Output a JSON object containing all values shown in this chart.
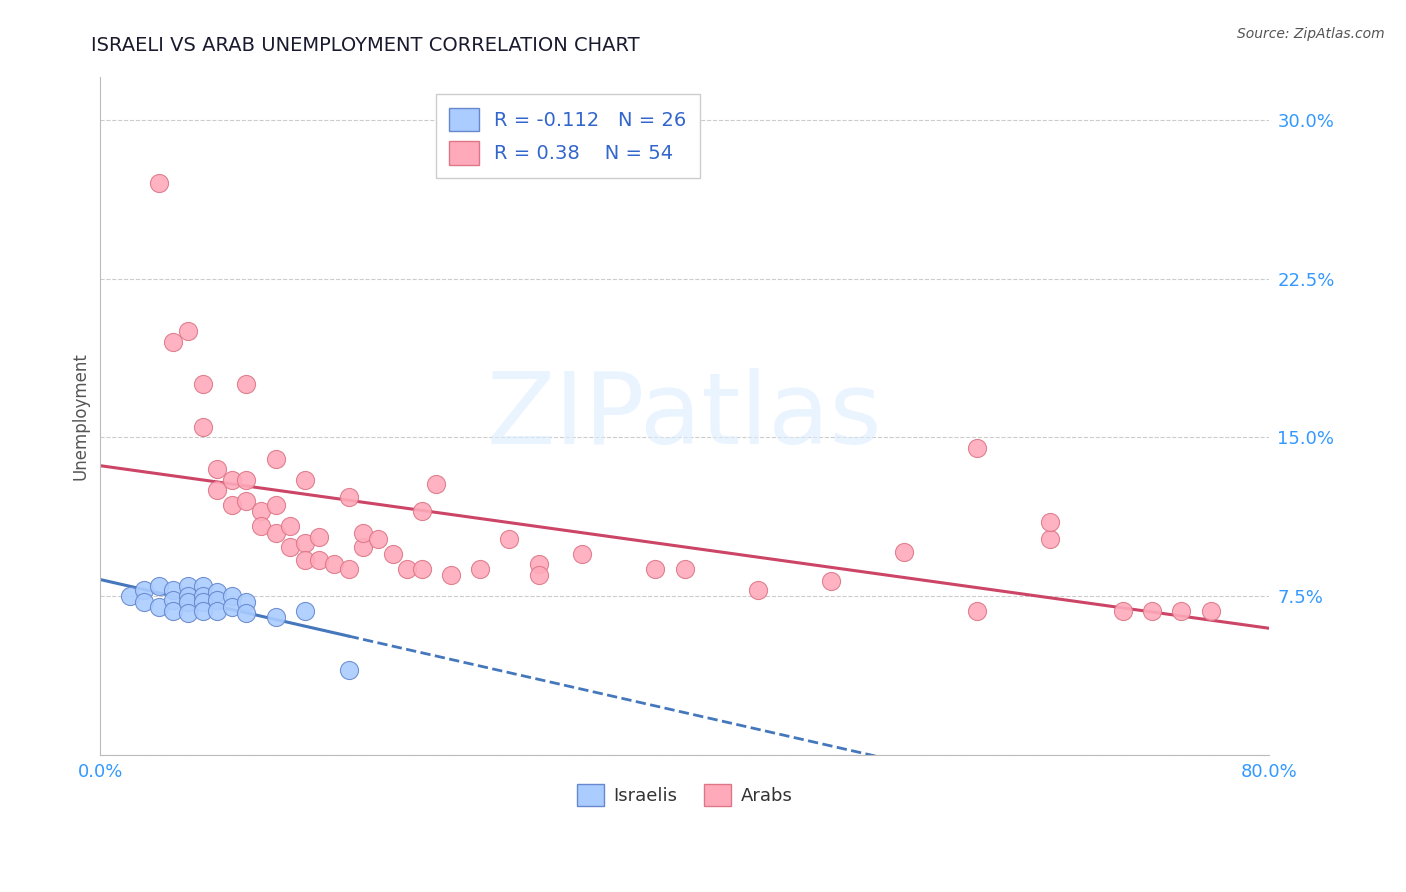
{
  "title": "ISRAELI VS ARAB UNEMPLOYMENT CORRELATION CHART",
  "source": "Source: ZipAtlas.com",
  "ylabel": "Unemployment",
  "xlim": [
    0.0,
    0.8
  ],
  "ylim": [
    0.0,
    0.32
  ],
  "yticks": [
    0.0,
    0.075,
    0.15,
    0.225,
    0.3
  ],
  "ytick_labels": [
    "",
    "7.5%",
    "15.0%",
    "22.5%",
    "30.0%"
  ],
  "xticks": [
    0.0,
    0.1,
    0.2,
    0.3,
    0.4,
    0.5,
    0.6,
    0.7,
    0.8
  ],
  "xtick_labels": [
    "0.0%",
    "",
    "",
    "",
    "",
    "",
    "",
    "",
    "80.0%"
  ],
  "grid_color": "#cccccc",
  "background_color": "#ffffff",
  "title_color": "#1a1a2e",
  "axis_label_color": "#555555",
  "tick_color": "#3399ff",
  "israelis_color": "#aaccff",
  "arabs_color": "#ffaabb",
  "israelis_edge_color": "#6688cc",
  "arabs_edge_color": "#dd7788",
  "trendline_israelis_color": "#4477bb",
  "trendline_arabs_color": "#cc4466",
  "legend_r_color": "#3366cc",
  "R_israelis": -0.112,
  "N_israelis": 26,
  "R_arabs": 0.38,
  "N_arabs": 54,
  "israelis_x": [
    0.02,
    0.03,
    0.03,
    0.04,
    0.04,
    0.05,
    0.05,
    0.05,
    0.06,
    0.06,
    0.06,
    0.06,
    0.07,
    0.07,
    0.07,
    0.07,
    0.08,
    0.08,
    0.08,
    0.09,
    0.09,
    0.1,
    0.1,
    0.12,
    0.14,
    0.17
  ],
  "israelis_y": [
    0.075,
    0.078,
    0.072,
    0.08,
    0.07,
    0.078,
    0.073,
    0.068,
    0.08,
    0.075,
    0.072,
    0.067,
    0.08,
    0.075,
    0.072,
    0.068,
    0.077,
    0.073,
    0.068,
    0.075,
    0.07,
    0.072,
    0.067,
    0.065,
    0.068,
    0.04
  ],
  "arabs_x": [
    0.04,
    0.05,
    0.06,
    0.07,
    0.07,
    0.08,
    0.08,
    0.09,
    0.09,
    0.1,
    0.1,
    0.11,
    0.11,
    0.12,
    0.12,
    0.13,
    0.13,
    0.14,
    0.14,
    0.15,
    0.15,
    0.16,
    0.17,
    0.17,
    0.18,
    0.18,
    0.19,
    0.2,
    0.21,
    0.22,
    0.23,
    0.24,
    0.26,
    0.28,
    0.3,
    0.33,
    0.38,
    0.4,
    0.45,
    0.5,
    0.55,
    0.6,
    0.65,
    0.7,
    0.72,
    0.74,
    0.76,
    0.1,
    0.12,
    0.14,
    0.22,
    0.3,
    0.6,
    0.65
  ],
  "arabs_y": [
    0.27,
    0.195,
    0.2,
    0.175,
    0.155,
    0.135,
    0.125,
    0.13,
    0.118,
    0.12,
    0.13,
    0.115,
    0.108,
    0.118,
    0.105,
    0.108,
    0.098,
    0.1,
    0.092,
    0.103,
    0.092,
    0.09,
    0.122,
    0.088,
    0.098,
    0.105,
    0.102,
    0.095,
    0.088,
    0.088,
    0.128,
    0.085,
    0.088,
    0.102,
    0.09,
    0.095,
    0.088,
    0.088,
    0.078,
    0.082,
    0.096,
    0.068,
    0.102,
    0.068,
    0.068,
    0.068,
    0.068,
    0.175,
    0.14,
    0.13,
    0.115,
    0.085,
    0.145,
    0.11
  ],
  "watermark_text": "ZIPatlas",
  "watermark_color": "#ddeeff",
  "watermark_alpha": 0.6
}
